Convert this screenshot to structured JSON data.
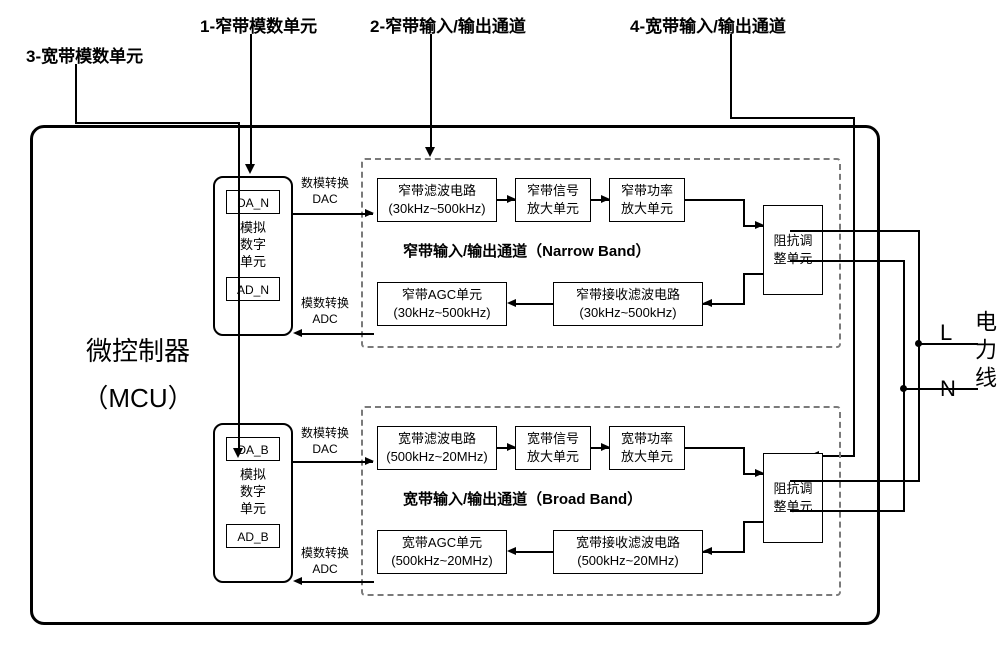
{
  "labels": {
    "l3": "3-宽带模数单元",
    "l1": "1-窄带模数单元",
    "l2": "2-窄带输入/输出通道",
    "l4": "4-宽带输入/输出通道"
  },
  "mcu": {
    "line1": "微控制器",
    "line2": "（MCU）"
  },
  "adc_n": {
    "da": "DA_N",
    "mid1": "模拟",
    "mid2": "数字",
    "mid3": "单元",
    "ad": "AD_N"
  },
  "adc_b": {
    "da": "DA_B",
    "mid1": "模拟",
    "mid2": "数字",
    "mid3": "单元",
    "ad": "AD_B"
  },
  "side": {
    "dac_n1": "数模转换",
    "dac_n2": "DAC",
    "adc_n1": "模数转换",
    "adc_n2": "ADC",
    "dac_b1": "数模转换",
    "dac_b2": "DAC",
    "adc_b1": "模数转换",
    "adc_b2": "ADC"
  },
  "nb": {
    "title": "窄带输入/输出通道（Narrow Band）",
    "filter": "窄带滤波电路\n(30kHz~500kHz)",
    "sigamp": "窄带信号\n放大单元",
    "pwramp": "窄带功率\n放大单元",
    "imp": "阻抗调\n整单元",
    "agc": "窄带AGC单元\n(30kHz~500kHz)",
    "rxfilter": "窄带接收滤波电路\n(30kHz~500kHz)"
  },
  "bb": {
    "title": "宽带输入/输出通道（Broad Band）",
    "filter": "宽带滤波电路\n(500kHz~20MHz)",
    "sigamp": "宽带信号\n放大单元",
    "pwramp": "宽带功率\n放大单元",
    "imp": "阻抗调\n整单元",
    "agc": "宽带AGC单元\n(500kHz~20MHz)",
    "rxfilter": "宽带接收滤波电路\n(500kHz~20MHz)"
  },
  "power": {
    "L": "L",
    "N": "N",
    "label": "电力线"
  }
}
